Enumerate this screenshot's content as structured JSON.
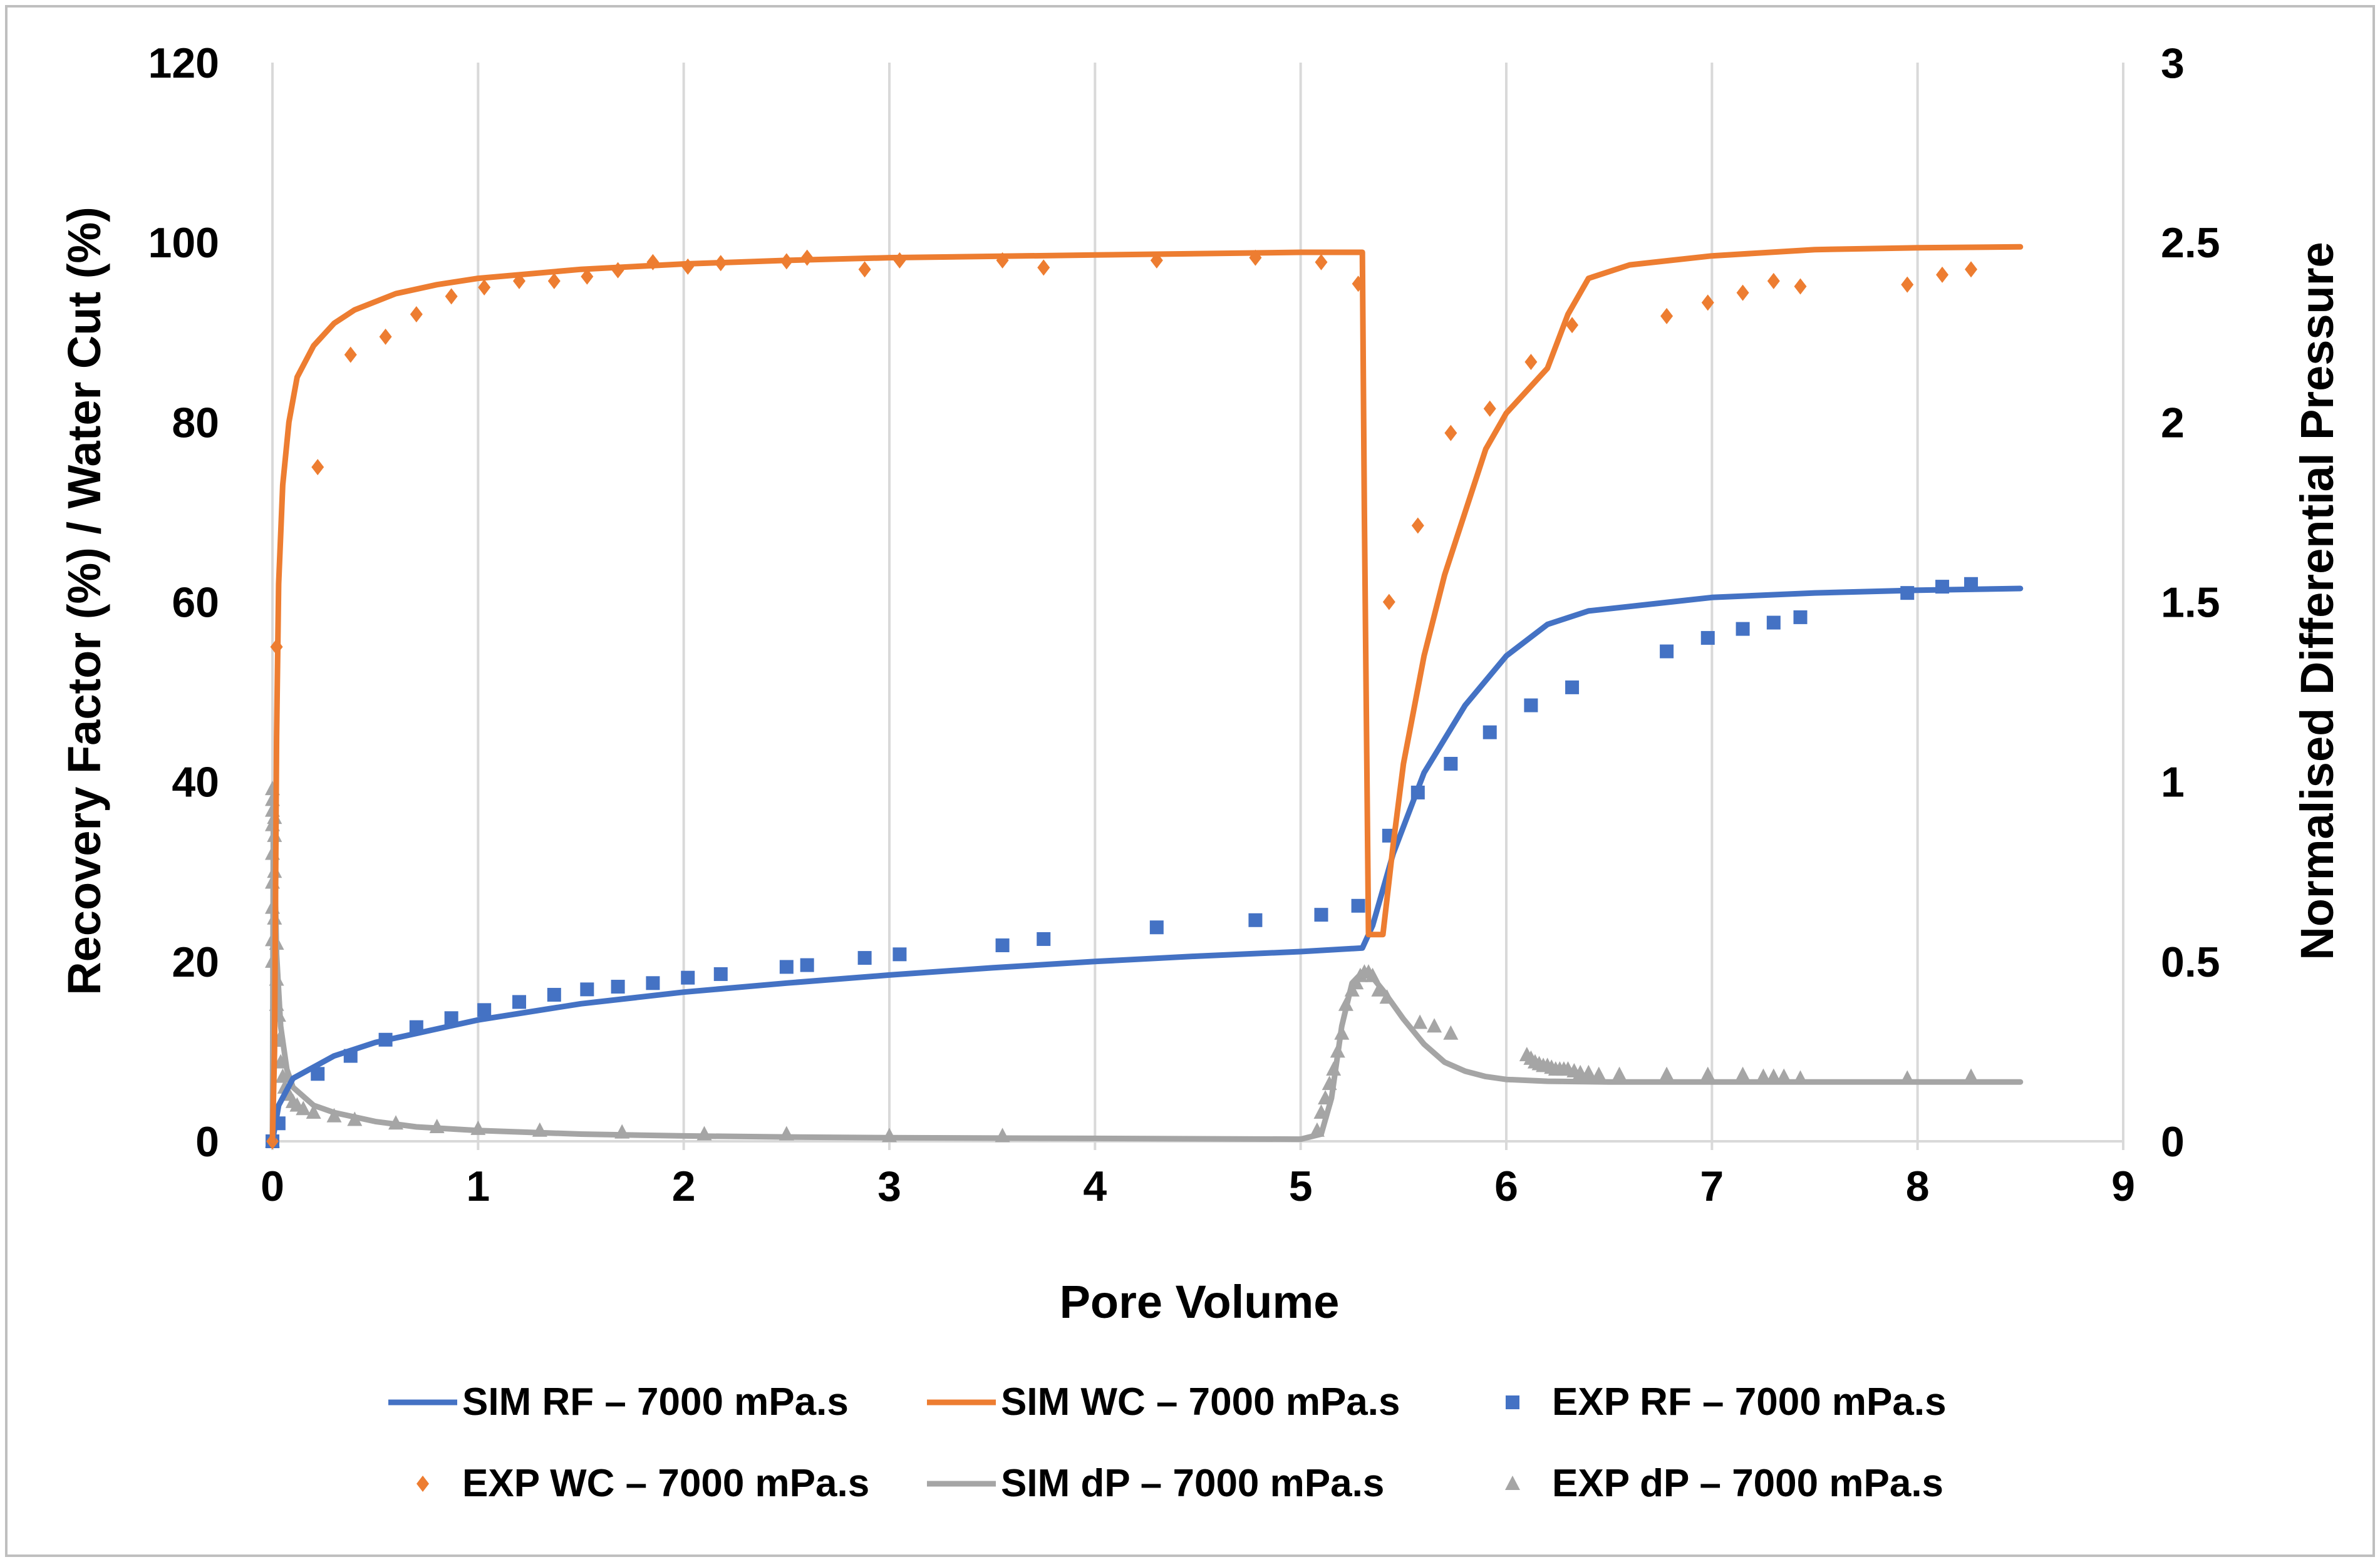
{
  "chart_data": {
    "type": "scatter",
    "title": "",
    "xlabel": "Pore Volume",
    "ylabel_left": "Recovery Factor (%) / Water Cut (%)",
    "ylabel_right": "Normalised Differential Pressure",
    "xlim": [
      0,
      9
    ],
    "ylim_left": [
      0,
      120
    ],
    "ylim_right": [
      0,
      3
    ],
    "grid": "vertical",
    "legend_position": "bottom",
    "x_ticks": [
      "0",
      "1",
      "2",
      "3",
      "4",
      "5",
      "6",
      "7",
      "8",
      "9"
    ],
    "y_left_ticks": [
      "0",
      "20",
      "40",
      "60",
      "80",
      "100",
      "120"
    ],
    "y_right_ticks": [
      "0",
      "0.5",
      "1",
      "1.5",
      "2",
      "2.5",
      "3"
    ],
    "colors": {
      "rf": "#4472C4",
      "wc": "#ED7D31",
      "dp": "#A5A5A5"
    },
    "series": [
      {
        "name": "SIM RF – 7000 mPa.s",
        "kind": "line",
        "axis": "left",
        "color": "#4472C4",
        "x": [
          0,
          0.03,
          0.1,
          0.3,
          0.5,
          0.8,
          1.0,
          1.5,
          2.0,
          2.5,
          3.0,
          3.5,
          4.0,
          4.5,
          5.0,
          5.3,
          5.35,
          5.45,
          5.6,
          5.8,
          6.0,
          6.2,
          6.4,
          6.6,
          7.0,
          7.5,
          8.0,
          8.5
        ],
        "y": [
          0,
          4,
          7,
          9.5,
          11,
          12.5,
          13.5,
          15.3,
          16.6,
          17.6,
          18.5,
          19.3,
          20,
          20.6,
          21.1,
          21.5,
          24,
          32,
          41,
          48.5,
          54,
          57.5,
          59,
          59.5,
          60.5,
          61,
          61.3,
          61.5
        ]
      },
      {
        "name": "SIM WC – 7000 mPa.s",
        "kind": "line",
        "axis": "left",
        "color": "#ED7D31",
        "x": [
          0,
          0.01,
          0.02,
          0.03,
          0.05,
          0.08,
          0.12,
          0.2,
          0.3,
          0.4,
          0.6,
          0.8,
          1.0,
          1.5,
          2.0,
          2.5,
          3.0,
          4.0,
          5.0,
          5.3,
          5.31,
          5.33,
          5.4,
          5.42,
          5.45,
          5.5,
          5.55,
          5.6,
          5.7,
          5.8,
          5.9,
          6.0,
          6.2,
          6.3,
          6.4,
          6.6,
          6.8,
          7.0,
          7.5,
          8.0,
          8.5
        ],
        "y": [
          0,
          10,
          45,
          62,
          73,
          80,
          85,
          88.5,
          91,
          92.5,
          94.3,
          95.3,
          96,
          97,
          97.6,
          98,
          98.3,
          98.6,
          98.9,
          98.9,
          70,
          23,
          23,
          27,
          33,
          42,
          48,
          54,
          63,
          70,
          77,
          81,
          86,
          92,
          96,
          97.5,
          98,
          98.5,
          99.2,
          99.4,
          99.5
        ]
      },
      {
        "name": "EXP RF – 7000 mPa.s",
        "kind": "square",
        "axis": "left",
        "color": "#4472C4",
        "x": [
          0,
          0.03,
          0.22,
          0.38,
          0.55,
          0.7,
          0.87,
          1.03,
          1.2,
          1.37,
          1.53,
          1.68,
          1.85,
          2.02,
          2.18,
          2.5,
          2.6,
          2.88,
          3.05,
          3.55,
          3.75,
          4.3,
          4.78,
          5.1,
          5.28,
          5.43,
          5.57,
          5.73,
          5.92,
          6.12,
          6.32,
          6.78,
          6.98,
          7.15,
          7.3,
          7.43,
          7.95,
          8.12,
          8.26
        ],
        "y": [
          0,
          2,
          7.5,
          9.5,
          11.3,
          12.7,
          13.7,
          14.6,
          15.5,
          16.3,
          16.9,
          17.2,
          17.6,
          18.2,
          18.6,
          19.4,
          19.6,
          20.4,
          20.8,
          21.8,
          22.5,
          23.8,
          24.6,
          25.2,
          26.2,
          34,
          38.8,
          42,
          45.5,
          48.5,
          50.5,
          54.5,
          56,
          57,
          57.7,
          58.3,
          61,
          61.7,
          62
        ]
      },
      {
        "name": "EXP WC – 7000 mPa.s",
        "kind": "diamond",
        "axis": "left",
        "color": "#ED7D31",
        "x": [
          0,
          0.02,
          0.22,
          0.38,
          0.55,
          0.7,
          0.87,
          1.03,
          1.2,
          1.37,
          1.53,
          1.68,
          1.85,
          2.02,
          2.18,
          2.5,
          2.6,
          2.88,
          3.05,
          3.55,
          3.75,
          4.3,
          4.78,
          5.1,
          5.28,
          5.43,
          5.57,
          5.73,
          5.92,
          6.12,
          6.32,
          6.78,
          6.98,
          7.15,
          7.3,
          7.43,
          7.95,
          8.12,
          8.26
        ],
        "y": [
          0,
          55,
          75,
          87.5,
          89.5,
          92,
          94,
          95,
          95.7,
          95.7,
          96.2,
          96.9,
          97.8,
          97.3,
          97.7,
          97.9,
          98.3,
          97,
          98,
          98,
          97.2,
          98,
          98.3,
          97.8,
          95.4,
          60,
          68.5,
          78.8,
          81.5,
          86.7,
          90.8,
          91.8,
          93.3,
          94.4,
          95.7,
          95.1,
          95.3,
          96.4,
          97
        ]
      },
      {
        "name": "SIM dP – 7000 mPa.s",
        "kind": "line",
        "axis": "right",
        "color": "#A5A5A5",
        "x": [
          0,
          0.005,
          0.01,
          0.02,
          0.04,
          0.07,
          0.1,
          0.2,
          0.3,
          0.5,
          0.7,
          1.0,
          1.5,
          2.0,
          2.5,
          3.0,
          4.0,
          5.0,
          5.1,
          5.15,
          5.2,
          5.25,
          5.3,
          5.33,
          5.4,
          5.5,
          5.6,
          5.7,
          5.8,
          5.9,
          6.0,
          6.2,
          6.5,
          7.0,
          7.5,
          8.0,
          8.5
        ],
        "y": [
          0,
          0.98,
          0.8,
          0.52,
          0.32,
          0.2,
          0.15,
          0.1,
          0.08,
          0.055,
          0.04,
          0.03,
          0.02,
          0.015,
          0.012,
          0.01,
          0.008,
          0.006,
          0.02,
          0.12,
          0.32,
          0.44,
          0.47,
          0.47,
          0.42,
          0.34,
          0.27,
          0.22,
          0.195,
          0.18,
          0.172,
          0.167,
          0.165,
          0.165,
          0.165,
          0.165,
          0.165
        ]
      },
      {
        "name": "EXP dP – 7000 mPa.s",
        "kind": "triangle",
        "axis": "right",
        "color": "#A5A5A5",
        "x": [
          0,
          0,
          0,
          0,
          0,
          0,
          0,
          0,
          0,
          0,
          0.01,
          0.01,
          0.01,
          0.01,
          0.02,
          0.02,
          0.02,
          0.03,
          0.03,
          0.04,
          0.05,
          0.06,
          0.08,
          0.1,
          0.12,
          0.15,
          0.2,
          0.3,
          0.4,
          0.6,
          0.8,
          1.0,
          1.3,
          1.7,
          2.1,
          2.5,
          3.0,
          3.55,
          5.08,
          5.1,
          5.12,
          5.14,
          5.16,
          5.18,
          5.2,
          5.22,
          5.25,
          5.27,
          5.29,
          5.31,
          5.33,
          5.35,
          5.38,
          5.42,
          5.58,
          5.65,
          5.73,
          6.1,
          6.12,
          6.14,
          6.16,
          6.18,
          6.2,
          6.22,
          6.24,
          6.26,
          6.28,
          6.3,
          6.33,
          6.36,
          6.4,
          6.45,
          6.55,
          6.78,
          6.98,
          7.15,
          7.25,
          7.3,
          7.35,
          7.43,
          7.95,
          8.26
        ],
        "y": [
          0,
          0.98,
          0.95,
          0.92,
          0.88,
          0.8,
          0.72,
          0.65,
          0.56,
          0.5,
          0.9,
          0.85,
          0.75,
          0.62,
          0.55,
          0.45,
          0.38,
          0.35,
          0.28,
          0.22,
          0.18,
          0.15,
          0.13,
          0.11,
          0.1,
          0.09,
          0.08,
          0.07,
          0.06,
          0.05,
          0.04,
          0.035,
          0.03,
          0.025,
          0.02,
          0.02,
          0.015,
          0.015,
          0.03,
          0.08,
          0.12,
          0.16,
          0.2,
          0.25,
          0.3,
          0.38,
          0.42,
          0.44,
          0.46,
          0.47,
          0.47,
          0.46,
          0.42,
          0.4,
          0.33,
          0.32,
          0.3,
          0.24,
          0.23,
          0.22,
          0.215,
          0.21,
          0.21,
          0.205,
          0.2,
          0.2,
          0.2,
          0.2,
          0.195,
          0.19,
          0.19,
          0.185,
          0.185,
          0.185,
          0.185,
          0.185,
          0.18,
          0.18,
          0.18,
          0.175,
          0.175,
          0.18
        ]
      }
    ]
  }
}
